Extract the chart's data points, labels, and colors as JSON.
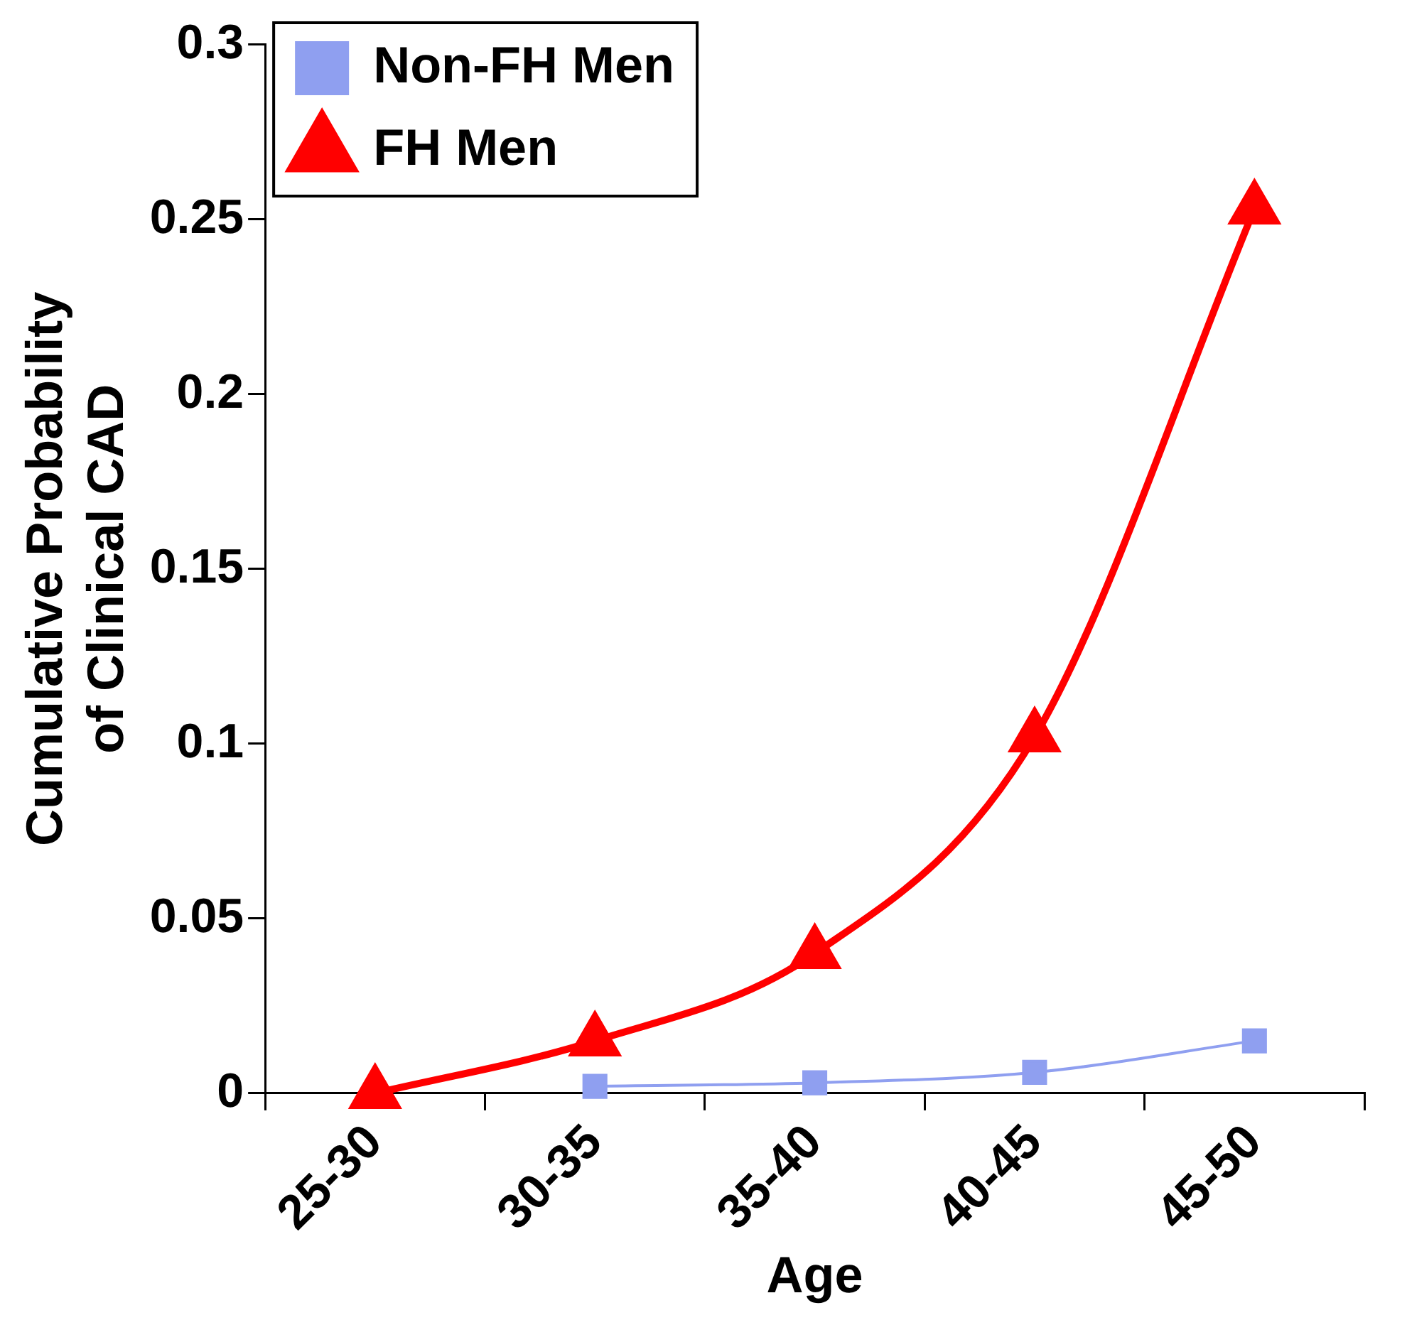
{
  "chart_data": {
    "type": "line",
    "xlabel": "Age",
    "ylabel": "Cumulative Probability\nof Clinical CAD",
    "categories": [
      "25-30",
      "30-35",
      "35-40",
      "40-45",
      "45-50"
    ],
    "series": [
      {
        "name": "Non-FH Men",
        "color": "#8f9ff0",
        "marker": "square",
        "values": [
          null,
          0.002,
          0.003,
          0.006,
          0.015
        ]
      },
      {
        "name": "FH Men",
        "color": "#ff0000",
        "marker": "triangle",
        "values": [
          0,
          0.015,
          0.04,
          0.102,
          0.253
        ]
      }
    ],
    "ylim": [
      0,
      0.3
    ],
    "yticks": [
      0,
      0.05,
      0.1,
      0.15,
      0.2,
      0.25,
      0.3
    ],
    "grid": false,
    "legend": "top left"
  }
}
